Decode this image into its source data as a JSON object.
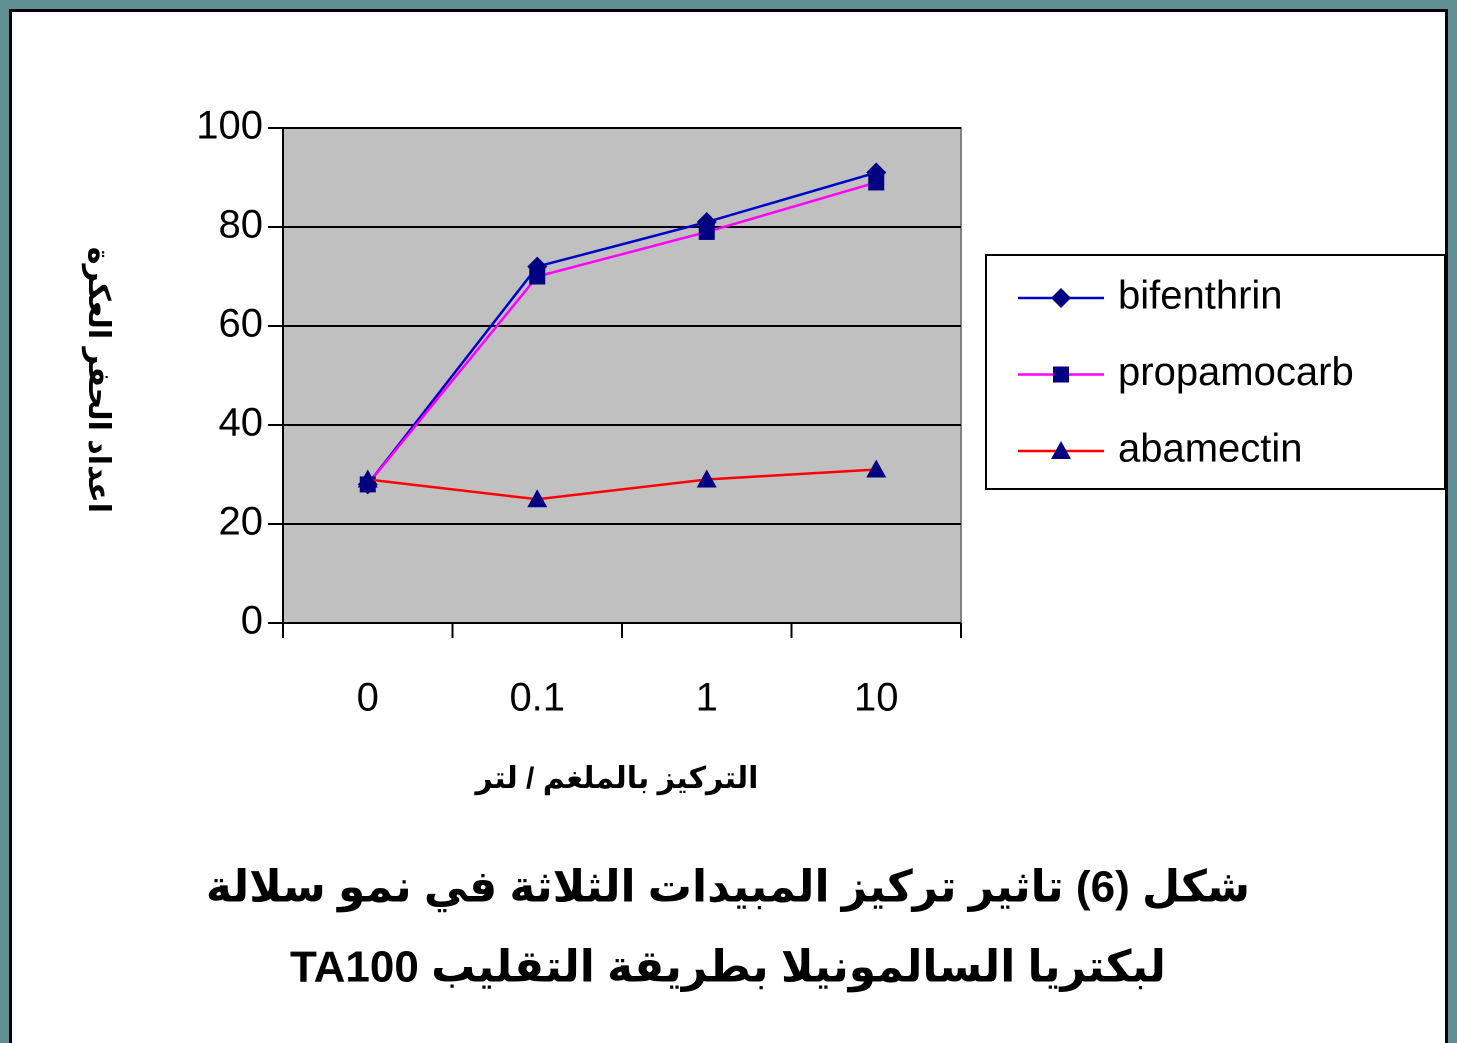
{
  "chart_data": {
    "type": "line",
    "title": "شكل (6) تاثير تركيز المبيدات الثلاثة في نمو سلالة",
    "subtitle": "لبكتريا السالمونيلا بطريقة التقليب TA100",
    "x_label": "التركيز بالملغم / لتر",
    "y_label": "اعداد الحفر العكرة",
    "categories": [
      "0",
      "0.1",
      "1",
      "10"
    ],
    "series": [
      {
        "name": "bifenthrin",
        "color": "#0000cc",
        "marker": "diamond",
        "values": [
          28,
          72,
          81,
          91
        ]
      },
      {
        "name": "propamocarb",
        "color": "#ff00ff",
        "marker": "square",
        "values": [
          28,
          70,
          79,
          89
        ]
      },
      {
        "name": "abamectin",
        "color": "#ff0000",
        "marker": "triangle",
        "values": [
          29,
          25,
          29,
          31
        ]
      }
    ],
    "marker_color": "#000080",
    "ylim": [
      0,
      100
    ],
    "yticks": [
      0,
      20,
      40,
      60,
      80,
      100
    ],
    "grid": true,
    "plot_background": "#c0c0c0",
    "legend": "right"
  }
}
